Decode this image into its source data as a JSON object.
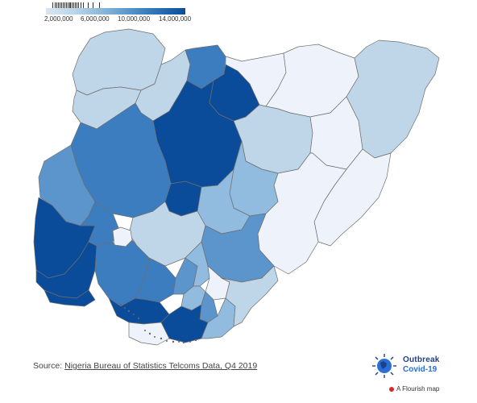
{
  "legend": {
    "ticks": [
      "2,000,000",
      "6,000,000",
      "10,000,000",
      "14,000,000"
    ]
  },
  "colors": {
    "c1": "#eef3fb",
    "c2": "#bfd6e9",
    "c3": "#91bbdf",
    "c4": "#5b95cc",
    "c5": "#3c7dbf",
    "c6": "#0a4b9a",
    "border": "#6e6e6e"
  },
  "source": {
    "prefix": "Source: ",
    "link_text": "Nigeria Bureau of Statistics Telcoms Data, Q4 2019"
  },
  "logo": {
    "line1": "Outbreak",
    "line2": "Covid-19"
  },
  "flourish": {
    "label": "A Flourish map"
  }
}
